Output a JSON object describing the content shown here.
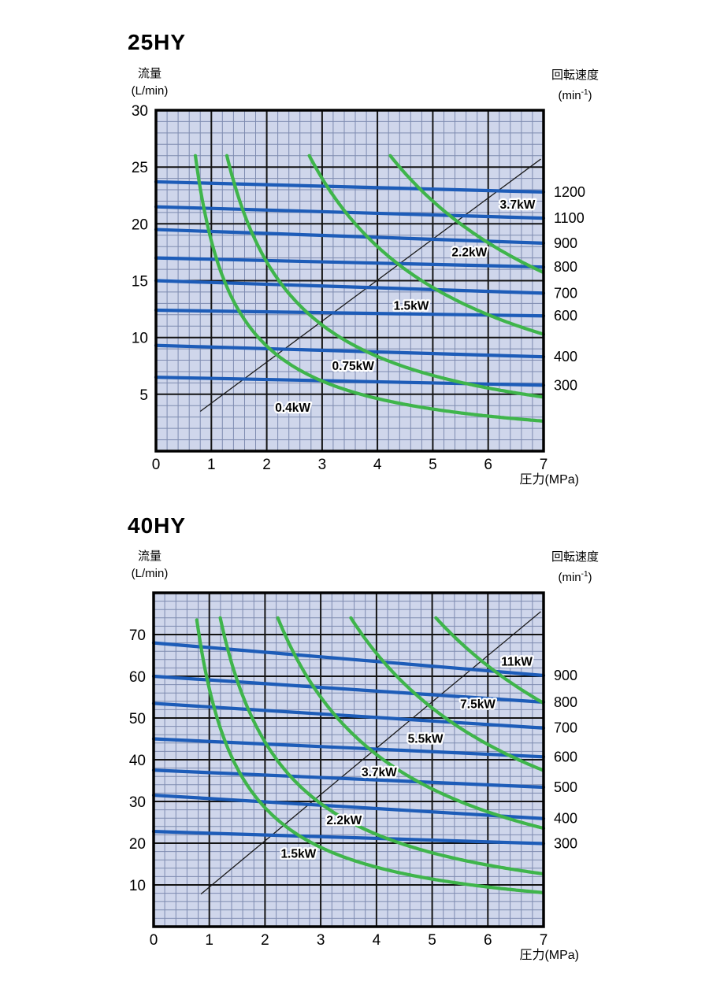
{
  "page": {
    "background": "#ffffff"
  },
  "colors": {
    "plot_background": "#cfd6eb",
    "minor_grid": "#7e8bb0",
    "major_grid": "#141414",
    "frame": "#000000",
    "flow_line": "#1d5cb8",
    "power_curve": "#3fb54b",
    "diagonal_line": "#1a1a1a",
    "label_text": "#000000",
    "label_halo": "#ffffff"
  },
  "charts": [
    {
      "title": "25HY",
      "y_axis_title_line1": "流量",
      "y_axis_title_line2": "(L/min)",
      "right_axis_title_line1": "回転速度",
      "right_axis_unit_open": "(min",
      "right_axis_unit_sup": "-1",
      "right_axis_unit_close": ")",
      "x_axis_title": "圧力(MPa)",
      "chart_data": {
        "type": "line",
        "title": "25HY pump performance: flow vs pressure",
        "xlabel": "圧力(MPa)",
        "ylabel": "流量(L/min)",
        "right_axis_label": "回転速度(min-1)",
        "x_range": [
          0,
          7
        ],
        "x_ticks": [
          0,
          1,
          2,
          3,
          4,
          5,
          6,
          7
        ],
        "x_minor_step": 0.2,
        "y_range": [
          0,
          30
        ],
        "y_ticks": [
          5,
          10,
          15,
          20,
          25,
          30
        ],
        "y_minor_step": 1,
        "y_major_step": 5,
        "grid": true,
        "flow_lines": [
          {
            "speed": "1200",
            "q_at_0mpa": 23.7,
            "q_at_7mpa": 22.8
          },
          {
            "speed": "1100",
            "q_at_0mpa": 21.5,
            "q_at_7mpa": 20.5
          },
          {
            "speed": "900",
            "q_at_0mpa": 19.5,
            "q_at_7mpa": 18.3
          },
          {
            "speed": "800",
            "q_at_0mpa": 17.0,
            "q_at_7mpa": 16.2
          },
          {
            "speed": "700",
            "q_at_0mpa": 15.0,
            "q_at_7mpa": 13.9
          },
          {
            "speed": "600",
            "q_at_0mpa": 12.4,
            "q_at_7mpa": 11.9
          },
          {
            "speed": "400",
            "q_at_0mpa": 9.3,
            "q_at_7mpa": 8.3
          },
          {
            "speed": "300",
            "q_at_0mpa": 6.5,
            "q_at_7mpa": 5.8
          }
        ],
        "power_curves": [
          {
            "power": "0.4kW",
            "qp_const": 18.5,
            "q_max": 26,
            "points": [
              [
                0.71,
                26
              ],
              [
                1,
                18.5
              ],
              [
                1.5,
                12.3
              ],
              [
                2,
                9.3
              ],
              [
                3,
                6.2
              ],
              [
                4,
                4.6
              ],
              [
                5,
                3.7
              ],
              [
                6,
                3.1
              ],
              [
                7,
                2.6
              ]
            ]
          },
          {
            "power": "0.75kW",
            "qp_const": 33.3,
            "q_max": 26,
            "points": [
              [
                1.28,
                26
              ],
              [
                1.5,
                22.2
              ],
              [
                2,
                16.7
              ],
              [
                3,
                11.1
              ],
              [
                4,
                8.3
              ],
              [
                5,
                6.7
              ],
              [
                6,
                5.6
              ],
              [
                7,
                4.8
              ]
            ]
          },
          {
            "power": "1.5kW",
            "qp_const": 72,
            "q_max": 26,
            "points": [
              [
                2.77,
                26
              ],
              [
                3,
                24
              ],
              [
                4,
                18
              ],
              [
                5,
                14.4
              ],
              [
                6,
                12
              ],
              [
                7,
                10.3
              ]
            ]
          },
          {
            "power": "2.2kW",
            "qp_const": 110,
            "q_max": 26,
            "points": [
              [
                4.23,
                26
              ],
              [
                5,
                22
              ],
              [
                6,
                18.3
              ],
              [
                7,
                15.7
              ]
            ]
          }
        ],
        "power_labels": [
          {
            "text": "0.4kW",
            "x": 2.47,
            "y": 3.8
          },
          {
            "text": "0.75kW",
            "x": 3.56,
            "y": 7.5
          },
          {
            "text": "1.5kW",
            "x": 4.61,
            "y": 12.8
          },
          {
            "text": "2.2kW",
            "x": 5.66,
            "y": 17.5
          },
          {
            "text": "3.7kW",
            "x": 6.53,
            "y": 21.7
          }
        ],
        "diagonal_line": {
          "from": [
            0.8,
            3.5
          ],
          "to": [
            6.95,
            25.7
          ]
        }
      }
    },
    {
      "title": "40HY",
      "y_axis_title_line1": "流量",
      "y_axis_title_line2": "(L/min)",
      "right_axis_title_line1": "回転速度",
      "right_axis_unit_open": "(min",
      "right_axis_unit_sup": "-1",
      "right_axis_unit_close": ")",
      "x_axis_title": "圧力(MPa)",
      "chart_data": {
        "type": "line",
        "title": "40HY pump performance: flow vs pressure",
        "xlabel": "圧力(MPa)",
        "ylabel": "流量(L/min)",
        "right_axis_label": "回転速度(min-1)",
        "x_range": [
          0,
          7
        ],
        "x_ticks": [
          0,
          1,
          2,
          3,
          4,
          5,
          6,
          7
        ],
        "x_minor_step": 0.2,
        "y_range": [
          0,
          80
        ],
        "y_ticks": [
          10,
          20,
          30,
          40,
          50,
          60,
          70
        ],
        "y_minor_step": 2,
        "y_major_step": 10,
        "grid": true,
        "flow_lines": [
          {
            "speed": "900",
            "q_at_0mpa": 68.0,
            "q_at_7mpa": 60.2
          },
          {
            "speed": "800",
            "q_at_0mpa": 60.0,
            "q_at_7mpa": 53.8
          },
          {
            "speed": "700",
            "q_at_0mpa": 53.5,
            "q_at_7mpa": 47.6
          },
          {
            "speed": "600",
            "q_at_0mpa": 45.0,
            "q_at_7mpa": 40.7
          },
          {
            "speed": "500",
            "q_at_0mpa": 37.5,
            "q_at_7mpa": 33.4
          },
          {
            "speed": "400",
            "q_at_0mpa": 31.5,
            "q_at_7mpa": 25.9
          },
          {
            "speed": "300",
            "q_at_0mpa": 22.8,
            "q_at_7mpa": 19.9
          }
        ],
        "power_curves": [
          {
            "power": "1.5kW",
            "qp_const": 57,
            "q_max": 73.5,
            "points": [
              [
                0.78,
                73.5
              ],
              [
                1,
                57
              ],
              [
                1.5,
                38
              ],
              [
                2,
                28.5
              ],
              [
                3,
                19
              ],
              [
                4,
                14.3
              ],
              [
                5,
                11.4
              ],
              [
                6,
                9.5
              ],
              [
                7,
                8.1
              ]
            ]
          },
          {
            "power": "2.2kW",
            "qp_const": 88.5,
            "q_max": 74,
            "points": [
              [
                1.2,
                74
              ],
              [
                1.5,
                59
              ],
              [
                2,
                44.3
              ],
              [
                3,
                29.5
              ],
              [
                4,
                22.1
              ],
              [
                5,
                17.7
              ],
              [
                6,
                14.8
              ],
              [
                7,
                12.6
              ]
            ]
          },
          {
            "power": "3.7kW",
            "qp_const": 165,
            "q_max": 74,
            "points": [
              [
                2.23,
                74
              ],
              [
                3,
                55
              ],
              [
                4,
                41.3
              ],
              [
                5,
                33
              ],
              [
                6,
                27.5
              ],
              [
                7,
                23.6
              ]
            ]
          },
          {
            "power": "5.5kW",
            "qp_const": 262,
            "q_max": 74,
            "points": [
              [
                3.54,
                74
              ],
              [
                4,
                65.5
              ],
              [
                5,
                52.4
              ],
              [
                6,
                43.7
              ],
              [
                7,
                37.4
              ]
            ]
          },
          {
            "power": "7.5kW",
            "qp_const": 375,
            "q_max": 74,
            "points": [
              [
                5.07,
                74
              ],
              [
                5.5,
                68.2
              ],
              [
                6,
                62.5
              ],
              [
                6.5,
                57.7
              ],
              [
                7,
                53.6
              ]
            ]
          }
        ],
        "power_labels": [
          {
            "text": "1.5kW",
            "x": 2.6,
            "y": 17.5
          },
          {
            "text": "2.2kW",
            "x": 3.42,
            "y": 25.5
          },
          {
            "text": "3.7kW",
            "x": 4.05,
            "y": 37.0
          },
          {
            "text": "5.5kW",
            "x": 4.88,
            "y": 45.0
          },
          {
            "text": "7.5kW",
            "x": 5.82,
            "y": 53.3
          },
          {
            "text": "11kW",
            "x": 6.52,
            "y": 63.5
          }
        ],
        "diagonal_line": {
          "from": [
            0.85,
            7.8
          ],
          "to": [
            6.95,
            75.5
          ]
        }
      }
    }
  ]
}
